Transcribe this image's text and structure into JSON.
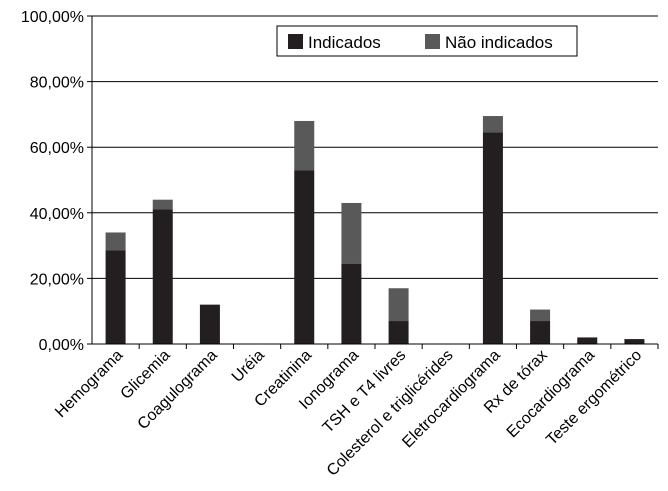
{
  "chart_data": {
    "type": "bar",
    "stacked": true,
    "categories": [
      "Hemograma",
      "Glicemia",
      "Coagulograma",
      "Uréia",
      "Creatinina",
      "Ionograma",
      "TSH e T4 livres",
      "Colesterol e triglicérides",
      "Eletrocardiograma",
      "Rx de tórax",
      "Ecocardiograma",
      "Teste ergométrico"
    ],
    "series": [
      {
        "name": "Indicados",
        "color": "#231f20",
        "values": [
          28.5,
          41.0,
          12.0,
          0.0,
          53.0,
          24.5,
          7.0,
          0.0,
          64.5,
          7.0,
          2.0,
          1.5
        ]
      },
      {
        "name": "Não indicados",
        "color": "#595959",
        "values": [
          5.5,
          3.0,
          0.0,
          0.0,
          15.0,
          18.5,
          10.0,
          0.0,
          5.0,
          3.5,
          0.0,
          0.0
        ]
      }
    ],
    "yticks": [
      "0,00%",
      "20,00%",
      "40,00%",
      "60,00%",
      "80,00%",
      "100,00%"
    ],
    "ylim": [
      0,
      100
    ],
    "grid": true,
    "legend_position": "top-right"
  }
}
